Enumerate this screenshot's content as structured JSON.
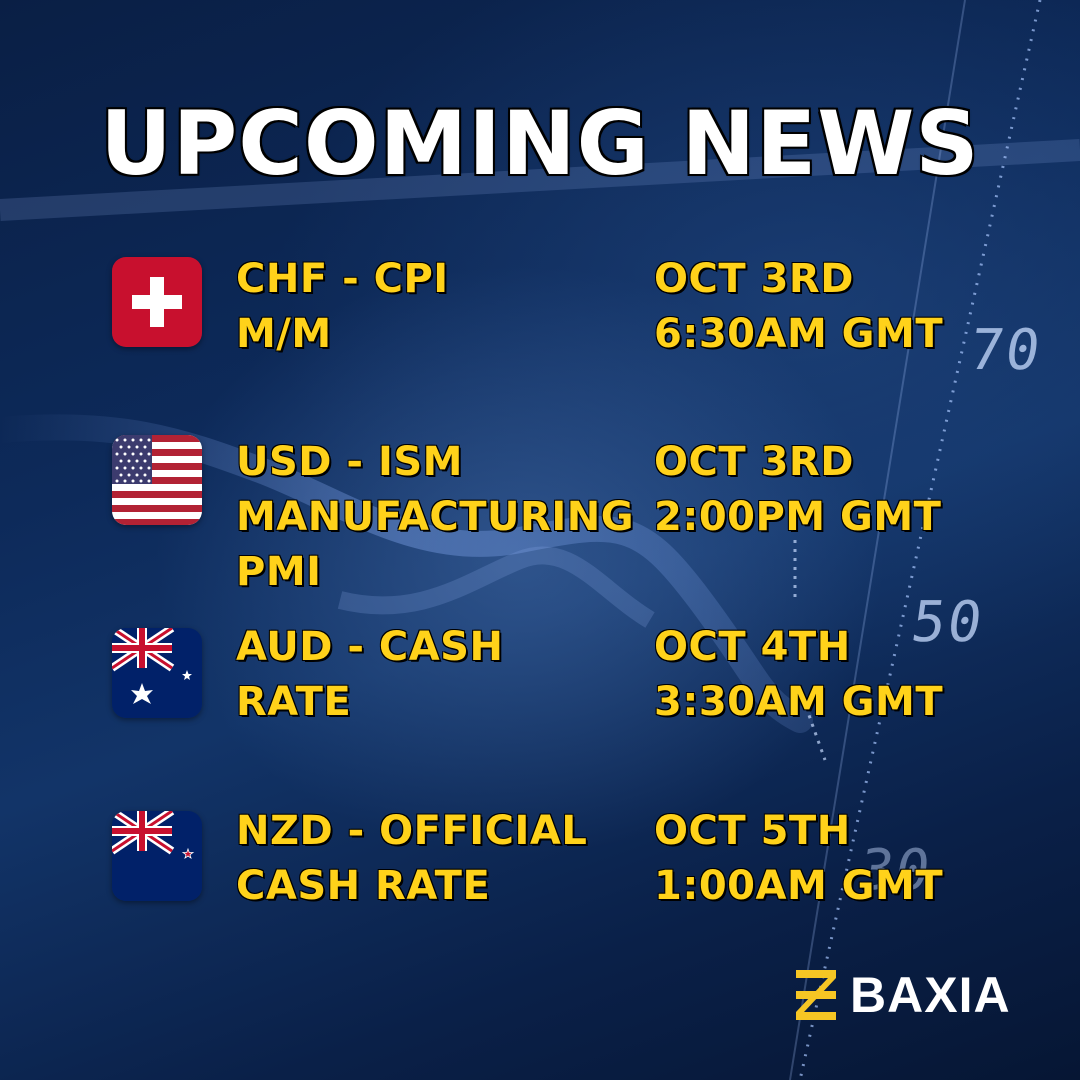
{
  "title": "UPCOMING NEWS",
  "background": {
    "tick_labels": [
      "70",
      "50",
      "30"
    ],
    "colors": {
      "base": "#0d2a5a",
      "highlight": "#466eaa"
    }
  },
  "colors": {
    "title": "#ffffff",
    "event_text": "#ffd21a",
    "brand_accent": "#f6c624"
  },
  "events": [
    {
      "flag": "switzerland-flag-icon",
      "name_lines": [
        "CHF - CPI",
        "M/M"
      ],
      "time_lines": [
        "OCT 3RD",
        "6:30AM GMT"
      ]
    },
    {
      "flag": "usa-flag-icon",
      "name_lines": [
        "USD - ISM",
        "MANUFACTURING",
        "PMI"
      ],
      "time_lines": [
        "OCT 3RD",
        "2:00PM GMT"
      ]
    },
    {
      "flag": "australia-flag-icon",
      "name_lines": [
        "AUD - CASH",
        "RATE"
      ],
      "time_lines": [
        "OCT 4TH",
        "3:30AM GMT"
      ]
    },
    {
      "flag": "new-zealand-flag-icon",
      "name_lines": [
        "NZD - OFFICIAL",
        "CASH RATE"
      ],
      "time_lines": [
        "OCT 5TH",
        "1:00AM GMT"
      ]
    }
  ],
  "brand": {
    "name": "BAXIA",
    "logo_icon": "baxia-logo-icon"
  }
}
